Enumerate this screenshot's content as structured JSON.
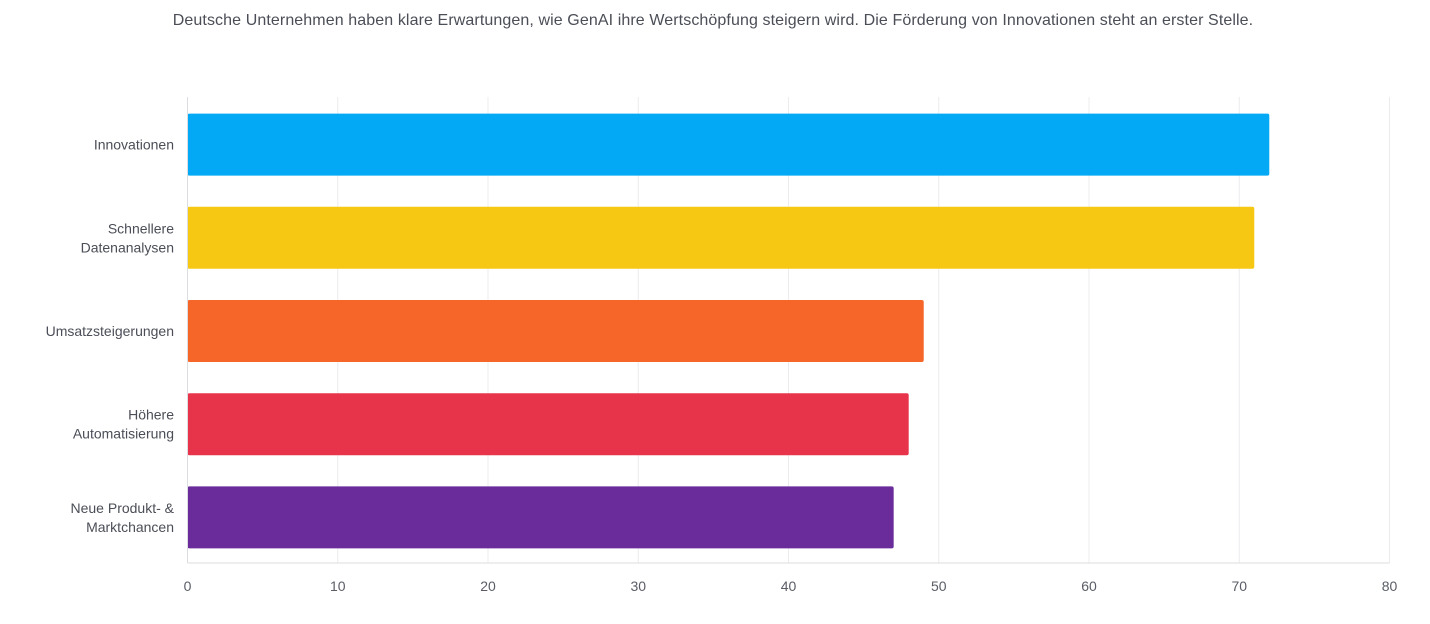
{
  "header": {
    "subtitle": "Deutsche Unternehmen haben klare Erwartungen, wie GenAI ihre Wertschöpfung steigern wird. Die Förderung von Innovationen steht an erster Stelle."
  },
  "chart_data": {
    "type": "bar",
    "orientation": "horizontal",
    "subtitle": "Deutsche Unternehmen haben klare Erwartungen, wie GenAI ihre Wertschöpfung steigern wird. Die Förderung von Innovationen steht an erster Stelle.",
    "categories": [
      [
        "Innovationen"
      ],
      [
        "Schnellere",
        "Datenanalysen"
      ],
      [
        "Umsatzsteigerungen"
      ],
      [
        "Höhere",
        "Automatisierung"
      ],
      [
        "Neue Produkt- &",
        "Marktchancen"
      ]
    ],
    "values": [
      72,
      71,
      49,
      48,
      47
    ],
    "colors": [
      "#03a9f4",
      "#f6c813",
      "#f66628",
      "#e8344a",
      "#6a2c9a"
    ],
    "xlim": [
      0,
      80
    ],
    "xticks": [
      0,
      10,
      20,
      30,
      40,
      50,
      60,
      70,
      80
    ],
    "grid": true,
    "legend": "none",
    "xlabel": "",
    "ylabel": ""
  }
}
